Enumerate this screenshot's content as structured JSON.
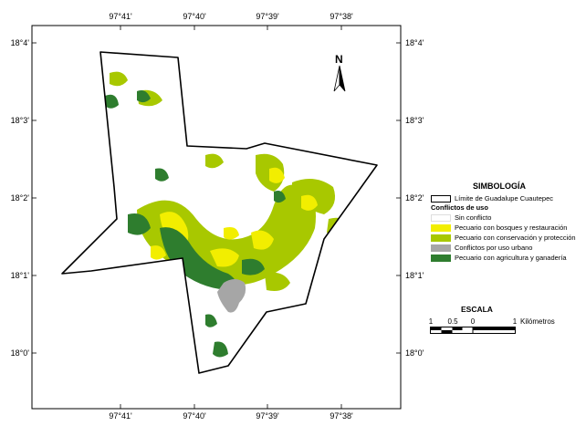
{
  "map": {
    "lon_ticks": [
      "97°41'",
      "97°40'",
      "97°39'",
      "97°38'"
    ],
    "lat_ticks": [
      "18°4'",
      "18°3'",
      "18°2'",
      "18°1'",
      "18°0'"
    ],
    "north_arrow_label": "N"
  },
  "legend": {
    "title": "SIMBOLOGÍA",
    "boundary_label": "Límite de Guadalupe Cuautepec",
    "subtitle": "Conflictos de uso",
    "items": [
      {
        "label": "Sin conflicto",
        "color": "#ffffff"
      },
      {
        "label": "Pecuario con bosques y restauración",
        "color": "#f2ee00"
      },
      {
        "label": "Pecuario con conservación y protección",
        "color": "#a8c800"
      },
      {
        "label": "Conflictos por uso urbano",
        "color": "#a6a6a6"
      },
      {
        "label": "Pecuario con agricultura y ganadería",
        "color": "#2e7d2e"
      }
    ]
  },
  "scale": {
    "title": "ESCALA",
    "labels": [
      "1",
      "0.5",
      "0",
      "1"
    ],
    "unit": "Kilómetros"
  }
}
